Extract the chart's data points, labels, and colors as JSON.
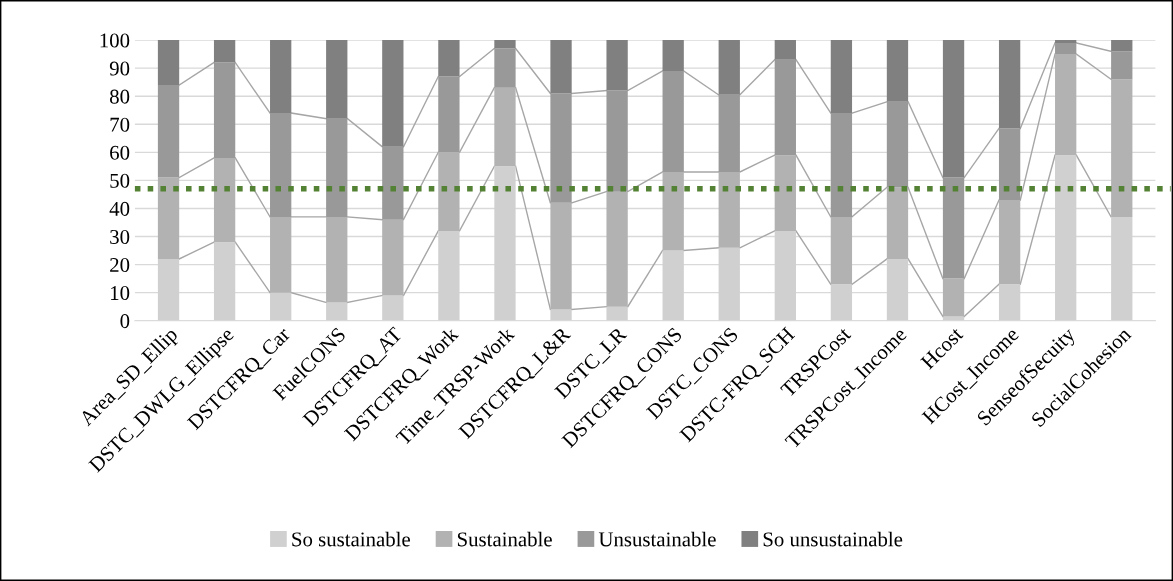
{
  "chart_data": {
    "type": "bar",
    "stacked": true,
    "categories": [
      "Area_SD_Ellip",
      "DSTC_DWLG_Ellipse",
      "DSTCFRQ_Car",
      "FuelCONS",
      "DSTCFRQ_AT",
      "DSTCFRQ_Work",
      "Time_TRSP-Work",
      "DSTCFRQ_L&R",
      "DSTC_LR",
      "DSTCFRQ_CONS",
      "DSTC_CONS",
      "DSTC-FRQ_SCH",
      "TRSPCost",
      "TRSPCost_Income",
      "Hcost",
      "HCost_Income",
      "SenseofSecuity",
      "SocialCohesion"
    ],
    "series": [
      {
        "name": "So sustainable",
        "color": "#d0d0d0",
        "values": [
          22,
          28,
          10,
          6.5,
          9,
          32,
          55,
          4,
          5,
          25,
          26,
          32,
          13,
          22,
          1.5,
          13,
          59,
          37
        ]
      },
      {
        "name": "Sustainable",
        "color": "#b2b2b2",
        "values": [
          29,
          30,
          27,
          30.5,
          27,
          28,
          28,
          38,
          41,
          28,
          27,
          27,
          24,
          25.5,
          13.5,
          30,
          36,
          49
        ]
      },
      {
        "name": "Unsustainable",
        "color": "#999999",
        "values": [
          33,
          34,
          37,
          35,
          26,
          27,
          14,
          39,
          36,
          36,
          27.5,
          34,
          37,
          30.5,
          36,
          25.5,
          4,
          10
        ]
      },
      {
        "name": "So unsustainable",
        "color": "#808080",
        "values": [
          16,
          8,
          26,
          28,
          38,
          13,
          3,
          19,
          18,
          11,
          19.5,
          7,
          26,
          22,
          49,
          31.5,
          1,
          4
        ]
      }
    ],
    "ylim": [
      0,
      100
    ],
    "yticks": [
      0,
      10,
      20,
      30,
      40,
      50,
      60,
      70,
      80,
      90,
      100
    ],
    "grid": "y",
    "legend": "bottom",
    "ref_lines": [
      {
        "axis": "y",
        "value": 47,
        "color": "#548235",
        "line_style": "dotted"
      }
    ]
  }
}
